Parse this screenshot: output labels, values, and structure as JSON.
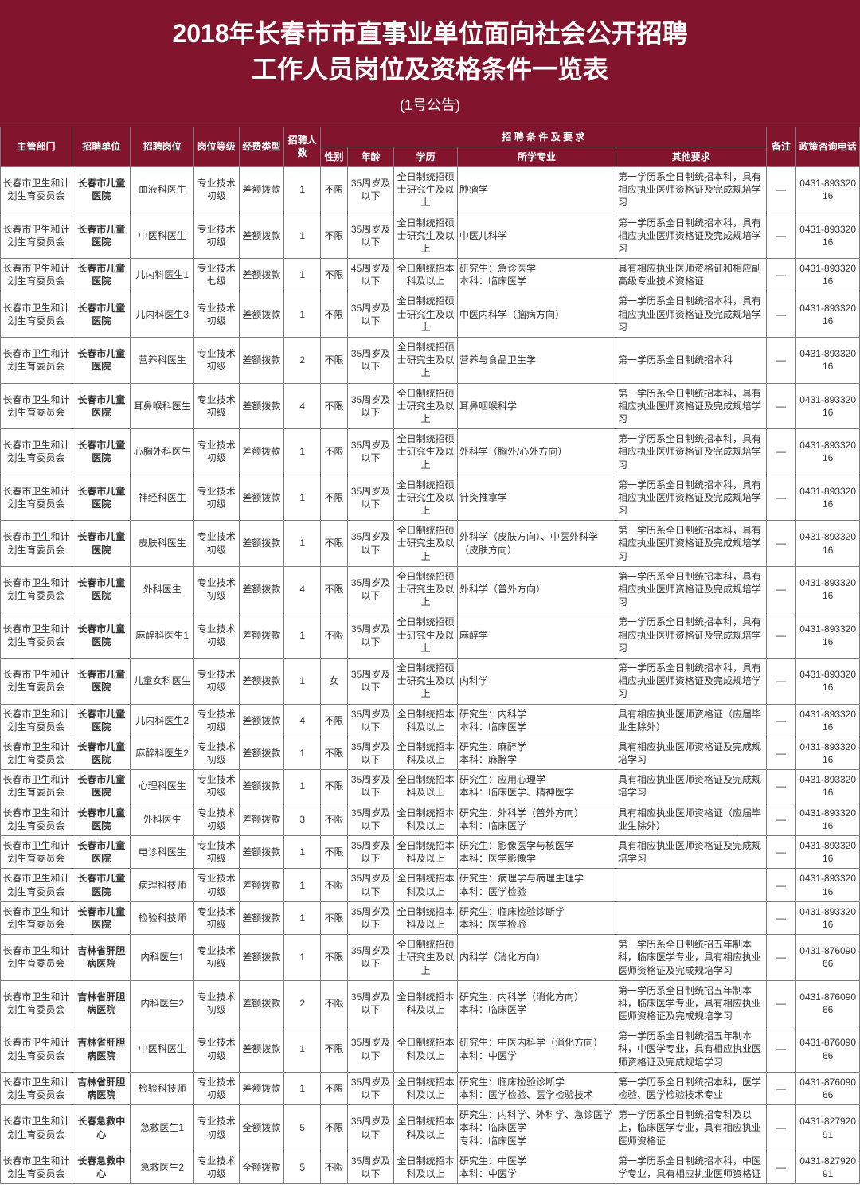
{
  "header": {
    "title_line1": "2018年长春市市直事业单位面向社会公开招聘",
    "title_line2": "工作人员岗位及资格条件一览表",
    "subtitle": "(1号公告)"
  },
  "columns": {
    "dept": "主管部门",
    "unit": "招聘单位",
    "job": "招聘岗位",
    "level": "岗位等级",
    "fund": "经费类型",
    "num": "招聘人数",
    "req_group": "招 聘 条 件 及 要 求",
    "sex": "性别",
    "age": "年龄",
    "edu": "学历",
    "major": "所学专业",
    "other": "其他要求",
    "note": "备注",
    "tel": "政策咨询电话"
  },
  "rows": [
    {
      "dept": "长春市卫生和计划生育委员会",
      "unit": "长春市儿童医院",
      "job": "血液科医生",
      "level": "专业技术初级",
      "fund": "差额拨款",
      "num": "1",
      "sex": "不限",
      "age": "35周岁及以下",
      "edu": "全日制统招硕士研究生及以上",
      "major": "肿瘤学",
      "other": "第一学历系全日制统招本科，具有相应执业医师资格证及完成规培学习",
      "note": "—",
      "tel": "0431-89332016"
    },
    {
      "dept": "长春市卫生和计划生育委员会",
      "unit": "长春市儿童医院",
      "job": "中医科医生",
      "level": "专业技术初级",
      "fund": "差额拨款",
      "num": "1",
      "sex": "不限",
      "age": "35周岁及以下",
      "edu": "全日制统招硕士研究生及以上",
      "major": "中医儿科学",
      "other": "第一学历系全日制统招本科，具有相应执业医师资格证及完成规培学习",
      "note": "—",
      "tel": "0431-89332016"
    },
    {
      "dept": "长春市卫生和计划生育委员会",
      "unit": "长春市儿童医院",
      "job": "儿内科医生1",
      "level": "专业技术七级",
      "fund": "差额拨款",
      "num": "1",
      "sex": "不限",
      "age": "45周岁及以下",
      "edu": "全日制统招本科及以上",
      "major": "研究生：急诊医学\n本科：临床医学",
      "other": "具有相应执业医师资格证和相应副高级专业技术资格证",
      "note": "—",
      "tel": "0431-89332016"
    },
    {
      "dept": "长春市卫生和计划生育委员会",
      "unit": "长春市儿童医院",
      "job": "儿内科医生3",
      "level": "专业技术初级",
      "fund": "差额拨款",
      "num": "1",
      "sex": "不限",
      "age": "35周岁及以下",
      "edu": "全日制统招硕士研究生及以上",
      "major": "中医内科学（脑病方向）",
      "other": "第一学历系全日制统招本科，具有相应执业医师资格证及完成规培学习",
      "note": "—",
      "tel": "0431-89332016"
    },
    {
      "dept": "长春市卫生和计划生育委员会",
      "unit": "长春市儿童医院",
      "job": "营养科医生",
      "level": "专业技术初级",
      "fund": "差额拨款",
      "num": "2",
      "sex": "不限",
      "age": "35周岁及以下",
      "edu": "全日制统招硕士研究生及以上",
      "major": "营养与食品卫生学",
      "other": "第一学历系全日制统招本科",
      "note": "—",
      "tel": "0431-89332016"
    },
    {
      "dept": "长春市卫生和计划生育委员会",
      "unit": "长春市儿童医院",
      "job": "耳鼻喉科医生",
      "level": "专业技术初级",
      "fund": "差额拨款",
      "num": "4",
      "sex": "不限",
      "age": "35周岁及以下",
      "edu": "全日制统招硕士研究生及以上",
      "major": "耳鼻咽喉科学",
      "other": "第一学历系全日制统招本科，具有相应执业医师资格证及完成规培学习",
      "note": "—",
      "tel": "0431-89332016"
    },
    {
      "dept": "长春市卫生和计划生育委员会",
      "unit": "长春市儿童医院",
      "job": "心胸外科医生",
      "level": "专业技术初级",
      "fund": "差额拨款",
      "num": "1",
      "sex": "不限",
      "age": "35周岁及以下",
      "edu": "全日制统招硕士研究生及以上",
      "major": "外科学（胸外/心外方向）",
      "other": "第一学历系全日制统招本科，具有相应执业医师资格证及完成规培学习",
      "note": "—",
      "tel": "0431-89332016"
    },
    {
      "dept": "长春市卫生和计划生育委员会",
      "unit": "长春市儿童医院",
      "job": "神经科医生",
      "level": "专业技术初级",
      "fund": "差额拨款",
      "num": "1",
      "sex": "不限",
      "age": "35周岁及以下",
      "edu": "全日制统招硕士研究生及以上",
      "major": "针灸推拿学",
      "other": "第一学历系全日制统招本科，具有相应执业医师资格证及完成规培学习",
      "note": "—",
      "tel": "0431-89332016"
    },
    {
      "dept": "长春市卫生和计划生育委员会",
      "unit": "长春市儿童医院",
      "job": "皮肤科医生",
      "level": "专业技术初级",
      "fund": "差额拨款",
      "num": "1",
      "sex": "不限",
      "age": "35周岁及以下",
      "edu": "全日制统招硕士研究生及以上",
      "major": "外科学（皮肤方向）、中医外科学（皮肤方向）",
      "other": "第一学历系全日制统招本科，具有相应执业医师资格证及完成规培学习",
      "note": "—",
      "tel": "0431-89332016"
    },
    {
      "dept": "长春市卫生和计划生育委员会",
      "unit": "长春市儿童医院",
      "job": "外科医生",
      "level": "专业技术初级",
      "fund": "差额拨款",
      "num": "4",
      "sex": "不限",
      "age": "35周岁及以下",
      "edu": "全日制统招硕士研究生及以上",
      "major": "外科学（普外方向）",
      "other": "第一学历系全日制统招本科，具有相应执业医师资格证及完成规培学习",
      "note": "—",
      "tel": "0431-89332016"
    },
    {
      "dept": "长春市卫生和计划生育委员会",
      "unit": "长春市儿童医院",
      "job": "麻醉科医生1",
      "level": "专业技术初级",
      "fund": "差额拨款",
      "num": "1",
      "sex": "不限",
      "age": "35周岁及以下",
      "edu": "全日制统招硕士研究生及以上",
      "major": "麻醉学",
      "other": "第一学历系全日制统招本科，具有相应执业医师资格证及完成规培学习",
      "note": "—",
      "tel": "0431-89332016"
    },
    {
      "dept": "长春市卫生和计划生育委员会",
      "unit": "长春市儿童医院",
      "job": "儿童女科医生",
      "level": "专业技术初级",
      "fund": "差额拨款",
      "num": "1",
      "sex": "女",
      "age": "35周岁及以下",
      "edu": "全日制统招硕士研究生及以上",
      "major": "内科学",
      "other": "第一学历系全日制统招本科，具有相应执业医师资格证及完成规培学习",
      "note": "—",
      "tel": "0431-89332016"
    },
    {
      "dept": "长春市卫生和计划生育委员会",
      "unit": "长春市儿童医院",
      "job": "儿内科医生2",
      "level": "专业技术初级",
      "fund": "差额拨款",
      "num": "4",
      "sex": "不限",
      "age": "35周岁及以下",
      "edu": "全日制统招本科及以上",
      "major": "研究生：内科学\n本科：临床医学",
      "other": "具有相应执业医师资格证（应届毕业生除外）",
      "note": "—",
      "tel": "0431-89332016"
    },
    {
      "dept": "长春市卫生和计划生育委员会",
      "unit": "长春市儿童医院",
      "job": "麻醉科医生2",
      "level": "专业技术初级",
      "fund": "差额拨款",
      "num": "1",
      "sex": "不限",
      "age": "35周岁及以下",
      "edu": "全日制统招本科及以上",
      "major": "研究生：麻醉学\n本科：麻醉学",
      "other": "具有相应执业医师资格证及完成规培学习",
      "note": "—",
      "tel": "0431-89332016"
    },
    {
      "dept": "长春市卫生和计划生育委员会",
      "unit": "长春市儿童医院",
      "job": "心理科医生",
      "level": "专业技术初级",
      "fund": "差额拨款",
      "num": "1",
      "sex": "不限",
      "age": "35周岁及以下",
      "edu": "全日制统招本科及以上",
      "major": "研究生：应用心理学\n本科：临床医学、精神医学",
      "other": "具有相应执业医师资格证及完成规培学习",
      "note": "—",
      "tel": "0431-89332016"
    },
    {
      "dept": "长春市卫生和计划生育委员会",
      "unit": "长春市儿童医院",
      "job": "外科医生",
      "level": "专业技术初级",
      "fund": "差额拨款",
      "num": "3",
      "sex": "不限",
      "age": "35周岁及以下",
      "edu": "全日制统招本科及以上",
      "major": "研究生：外科学（普外方向）\n本科：临床医学",
      "other": "具有相应执业医师资格证（应届毕业生除外）",
      "note": "—",
      "tel": "0431-89332016"
    },
    {
      "dept": "长春市卫生和计划生育委员会",
      "unit": "长春市儿童医院",
      "job": "电诊科医生",
      "level": "专业技术初级",
      "fund": "差额拨款",
      "num": "1",
      "sex": "不限",
      "age": "35周岁及以下",
      "edu": "全日制统招本科及以上",
      "major": "研究生：影像医学与核医学\n本科：医学影像学",
      "other": "具有相应执业医师资格证及完成规培学习",
      "note": "—",
      "tel": "0431-89332016"
    },
    {
      "dept": "长春市卫生和计划生育委员会",
      "unit": "长春市儿童医院",
      "job": "病理科技师",
      "level": "专业技术初级",
      "fund": "差额拨款",
      "num": "1",
      "sex": "不限",
      "age": "35周岁及以下",
      "edu": "全日制统招本科及以上",
      "major": "研究生：病理学与病理生理学\n本科：医学检验",
      "other": "",
      "note": "—",
      "tel": "0431-89332016"
    },
    {
      "dept": "长春市卫生和计划生育委员会",
      "unit": "长春市儿童医院",
      "job": "检验科技师",
      "level": "专业技术初级",
      "fund": "差额拨款",
      "num": "1",
      "sex": "不限",
      "age": "35周岁及以下",
      "edu": "全日制统招本科及以上",
      "major": "研究生：临床检验诊断学\n本科：医学检验",
      "other": "",
      "note": "—",
      "tel": "0431-89332016"
    },
    {
      "dept": "长春市卫生和计划生育委员会",
      "unit": "吉林省肝胆病医院",
      "job": "内科医生1",
      "level": "专业技术初级",
      "fund": "差额拨款",
      "num": "1",
      "sex": "不限",
      "age": "35周岁及以下",
      "edu": "全日制统招硕士研究生及以上",
      "major": "内科学（消化方向）",
      "other": "第一学历系全日制统招五年制本科，临床医学专业，具有相应执业医师资格证及完成规培学习",
      "note": "—",
      "tel": "0431-87609066"
    },
    {
      "dept": "长春市卫生和计划生育委员会",
      "unit": "吉林省肝胆病医院",
      "job": "内科医生2",
      "level": "专业技术初级",
      "fund": "差额拨款",
      "num": "2",
      "sex": "不限",
      "age": "35周岁及以下",
      "edu": "全日制统招本科及以上",
      "major": "研究生：内科学（消化方向）\n本科：临床医学",
      "other": "第一学历系全日制统招五年制本科，临床医学专业，具有相应执业医师资格证及完成规培学习",
      "note": "—",
      "tel": "0431-87609066"
    },
    {
      "dept": "长春市卫生和计划生育委员会",
      "unit": "吉林省肝胆病医院",
      "job": "中医科医生",
      "level": "专业技术初级",
      "fund": "差额拨款",
      "num": "1",
      "sex": "不限",
      "age": "35周岁及以下",
      "edu": "全日制统招本科及以上",
      "major": "研究生：中医内科学（消化方向）\n本科：中医学",
      "other": "第一学历系全日制统招五年制本科，中医学专业，具有相应执业医师资格证及完成规培学习",
      "note": "—",
      "tel": "0431-87609066"
    },
    {
      "dept": "长春市卫生和计划生育委员会",
      "unit": "吉林省肝胆病医院",
      "job": "检验科技师",
      "level": "专业技术初级",
      "fund": "差额拨款",
      "num": "1",
      "sex": "不限",
      "age": "35周岁及以下",
      "edu": "全日制统招本科及以上",
      "major": "研究生：临床检验诊断学\n本科：医学检验、医学检验技术",
      "other": "第一学历系全日制统招本科，医学检验、医学检验技术专业",
      "note": "—",
      "tel": "0431-87609066"
    },
    {
      "dept": "长春市卫生和计划生育委员会",
      "unit": "长春急救中心",
      "job": "急救医生1",
      "level": "专业技术初级",
      "fund": "全额拨款",
      "num": "5",
      "sex": "不限",
      "age": "35周岁及以下",
      "edu": "全日制统招本科及以上",
      "major": "研究生：内科学、外科学、急诊医学\n本科：临床医学\n专科：临床医学",
      "other": "第一学历系全日制统招专科及以上，临床医学专业，具有相应执业医师资格证",
      "note": "—",
      "tel": "0431-82792091"
    },
    {
      "dept": "长春市卫生和计划生育委员会",
      "unit": "长春急救中心",
      "job": "急救医生2",
      "level": "专业技术初级",
      "fund": "全额拨款",
      "num": "5",
      "sex": "不限",
      "age": "35周岁及以下",
      "edu": "全日制统招本科及以上",
      "major": "研究生：中医学\n本科：中医学",
      "other": "第一学历系全日制统招本科，中医学专业，具有相应执业医师资格证",
      "note": "—",
      "tel": "0431-82792091"
    }
  ],
  "styles": {
    "header_bg": "#82142d",
    "header_fg": "#ffffff",
    "border_color": "#7a7a7a",
    "body_fg": "#333333",
    "title_fontsize": 32,
    "subtitle_fontsize": 18,
    "cell_fontsize": 12
  }
}
